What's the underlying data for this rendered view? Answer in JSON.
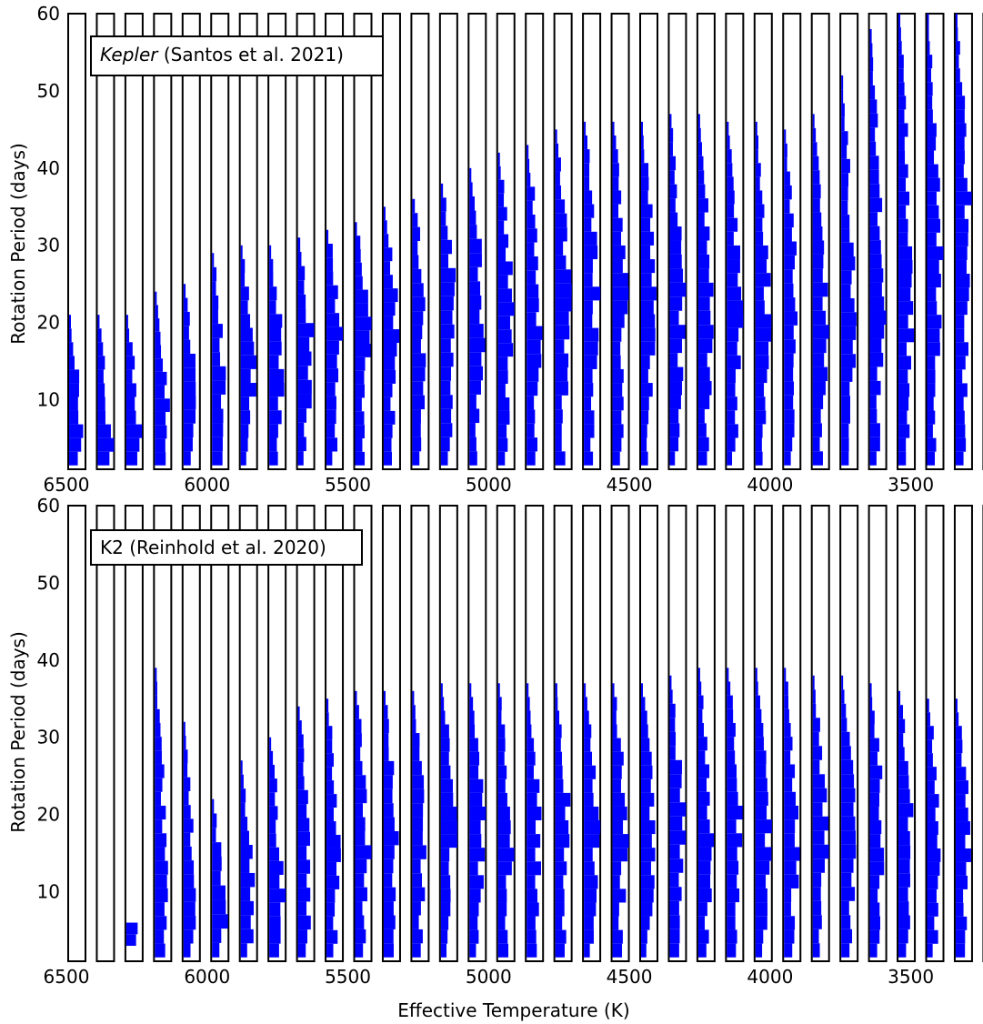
{
  "colors": {
    "bar": "#0000ff",
    "frame": "#000000",
    "background": "#ffffff"
  },
  "chart_data": [
    {
      "type": "violin-histogram",
      "annotation": {
        "italic": "Kepler",
        "rest": " (Santos et al. 2021)"
      },
      "ylabel": "Rotation Period (days)",
      "xlabel": "",
      "xlim": [
        6500,
        3250
      ],
      "ylim": [
        1,
        60
      ],
      "x_ticks": [
        "6500",
        "6000",
        "5500",
        "5000",
        "4500",
        "4000",
        "3500"
      ],
      "y_ticks": [
        "10",
        "20",
        "30",
        "40",
        "50",
        "60"
      ],
      "bins": [
        {
          "teff": 6500,
          "pmin": 1.5,
          "peak": 3,
          "pmax": 21
        },
        {
          "teff": 6400,
          "pmin": 1.5,
          "peak": 4,
          "pmax": 21
        },
        {
          "teff": 6300,
          "pmin": 1.5,
          "peak": 5,
          "pmax": 21
        },
        {
          "teff": 6200,
          "pmin": 1.5,
          "peak": 6,
          "pmax": 24
        },
        {
          "teff": 6100,
          "pmin": 1.5,
          "peak": 8,
          "pmax": 25
        },
        {
          "teff": 6000,
          "pmin": 1.5,
          "peak": 10,
          "pmax": 29
        },
        {
          "teff": 5900,
          "pmin": 1.5,
          "peak": 12,
          "pmax": 30
        },
        {
          "teff": 5800,
          "pmin": 1.5,
          "peak": 15,
          "pmax": 30
        },
        {
          "teff": 5700,
          "pmin": 1.5,
          "peak": 18,
          "pmax": 31
        },
        {
          "teff": 5600,
          "pmin": 1.5,
          "peak": 20,
          "pmax": 32
        },
        {
          "teff": 5500,
          "pmin": 1.5,
          "peak": 21,
          "pmax": 33
        },
        {
          "teff": 5400,
          "pmin": 1.5,
          "peak": 21,
          "pmax": 35
        },
        {
          "teff": 5300,
          "pmin": 1.5,
          "peak": 22,
          "pmax": 36
        },
        {
          "teff": 5200,
          "pmin": 1.5,
          "peak": 23,
          "pmax": 38
        },
        {
          "teff": 5100,
          "pmin": 1.5,
          "peak": 23,
          "pmax": 40
        },
        {
          "teff": 5000,
          "pmin": 1.5,
          "peak": 24,
          "pmax": 42
        },
        {
          "teff": 4900,
          "pmin": 1.5,
          "peak": 24,
          "pmax": 43
        },
        {
          "teff": 4800,
          "pmin": 1.5,
          "peak": 24,
          "pmax": 45
        },
        {
          "teff": 4700,
          "pmin": 1.5,
          "peak": 24,
          "pmax": 46
        },
        {
          "teff": 4600,
          "pmin": 1.5,
          "peak": 24,
          "pmax": 46
        },
        {
          "teff": 4500,
          "pmin": 1.5,
          "peak": 24,
          "pmax": 46
        },
        {
          "teff": 4400,
          "pmin": 1.5,
          "peak": 23,
          "pmax": 47
        },
        {
          "teff": 4300,
          "pmin": 1.5,
          "peak": 22,
          "pmax": 47
        },
        {
          "teff": 4200,
          "pmin": 1.5,
          "peak": 21,
          "pmax": 46
        },
        {
          "teff": 4100,
          "pmin": 1.5,
          "peak": 20,
          "pmax": 46
        },
        {
          "teff": 4000,
          "pmin": 1.5,
          "peak": 20,
          "pmax": 45
        },
        {
          "teff": 3900,
          "pmin": 1.5,
          "peak": 19,
          "pmax": 47
        },
        {
          "teff": 3800,
          "pmin": 1.5,
          "peak": 21,
          "pmax": 52
        },
        {
          "teff": 3700,
          "pmin": 1.5,
          "peak": 23,
          "pmax": 58
        },
        {
          "teff": 3600,
          "pmin": 1.5,
          "peak": 25,
          "pmax": 60
        },
        {
          "teff": 3500,
          "pmin": 1.5,
          "peak": 28,
          "pmax": 60
        },
        {
          "teff": 3400,
          "pmin": 1.5,
          "peak": 32,
          "pmax": 60
        },
        {
          "teff": 3300,
          "pmin": 1.5,
          "peak": 35,
          "pmax": 60
        }
      ]
    },
    {
      "type": "violin-histogram",
      "annotation": {
        "italic": "",
        "rest": "K2 (Reinhold et al. 2020)"
      },
      "ylabel": "Rotation Period (days)",
      "xlabel": "Effective Temperature (K)",
      "xlim": [
        6500,
        3250
      ],
      "ylim": [
        1,
        60
      ],
      "x_ticks": [
        "6500",
        "6000",
        "5500",
        "5000",
        "4500",
        "4000",
        "3500"
      ],
      "y_ticks": [
        "10",
        "20",
        "30",
        "40",
        "50",
        "60"
      ],
      "bins": [
        {
          "teff": 6500,
          "pmin": 0,
          "peak": 0,
          "pmax": 0
        },
        {
          "teff": 6400,
          "pmin": 0,
          "peak": 0,
          "pmax": 0
        },
        {
          "teff": 6300,
          "pmin": 3,
          "peak": 5,
          "pmax": 6
        },
        {
          "teff": 6200,
          "pmin": 1.5,
          "peak": 5,
          "pmax": 39
        },
        {
          "teff": 6100,
          "pmin": 1.5,
          "peak": 6,
          "pmax": 32
        },
        {
          "teff": 6000,
          "pmin": 1.5,
          "peak": 6,
          "pmax": 22
        },
        {
          "teff": 5900,
          "pmin": 1.5,
          "peak": 7,
          "pmax": 27
        },
        {
          "teff": 5800,
          "pmin": 1.5,
          "peak": 10,
          "pmax": 30
        },
        {
          "teff": 5700,
          "pmin": 1.5,
          "peak": 12,
          "pmax": 34
        },
        {
          "teff": 5600,
          "pmin": 1.5,
          "peak": 14,
          "pmax": 35
        },
        {
          "teff": 5500,
          "pmin": 1.5,
          "peak": 16,
          "pmax": 36
        },
        {
          "teff": 5400,
          "pmin": 1.5,
          "peak": 17,
          "pmax": 36
        },
        {
          "teff": 5300,
          "pmin": 1.5,
          "peak": 18,
          "pmax": 36
        },
        {
          "teff": 5200,
          "pmin": 1.5,
          "peak": 18,
          "pmax": 37
        },
        {
          "teff": 5100,
          "pmin": 1.5,
          "peak": 18,
          "pmax": 37
        },
        {
          "teff": 5000,
          "pmin": 1.5,
          "peak": 18,
          "pmax": 37
        },
        {
          "teff": 4900,
          "pmin": 1.5,
          "peak": 18,
          "pmax": 37
        },
        {
          "teff": 4800,
          "pmin": 1.5,
          "peak": 18,
          "pmax": 37
        },
        {
          "teff": 4700,
          "pmin": 1.5,
          "peak": 18,
          "pmax": 37
        },
        {
          "teff": 4600,
          "pmin": 1.5,
          "peak": 18,
          "pmax": 37
        },
        {
          "teff": 4500,
          "pmin": 1.5,
          "peak": 18,
          "pmax": 37
        },
        {
          "teff": 4400,
          "pmin": 1.5,
          "peak": 18,
          "pmax": 38
        },
        {
          "teff": 4300,
          "pmin": 1.5,
          "peak": 18,
          "pmax": 39
        },
        {
          "teff": 4200,
          "pmin": 1.5,
          "peak": 18,
          "pmax": 39
        },
        {
          "teff": 4100,
          "pmin": 1.5,
          "peak": 18,
          "pmax": 39
        },
        {
          "teff": 4000,
          "pmin": 1.5,
          "peak": 18,
          "pmax": 39
        },
        {
          "teff": 3900,
          "pmin": 1.5,
          "peak": 18,
          "pmax": 38
        },
        {
          "teff": 3800,
          "pmin": 1.5,
          "peak": 18,
          "pmax": 38
        },
        {
          "teff": 3700,
          "pmin": 1.5,
          "peak": 18,
          "pmax": 37
        },
        {
          "teff": 3600,
          "pmin": 1.5,
          "peak": 18,
          "pmax": 36
        },
        {
          "teff": 3500,
          "pmin": 1.5,
          "peak": 18,
          "pmax": 35
        },
        {
          "teff": 3400,
          "pmin": 1.5,
          "peak": 18,
          "pmax": 35
        },
        {
          "teff": 3300,
          "pmin": 1.5,
          "peak": 18,
          "pmax": 36
        }
      ]
    }
  ]
}
